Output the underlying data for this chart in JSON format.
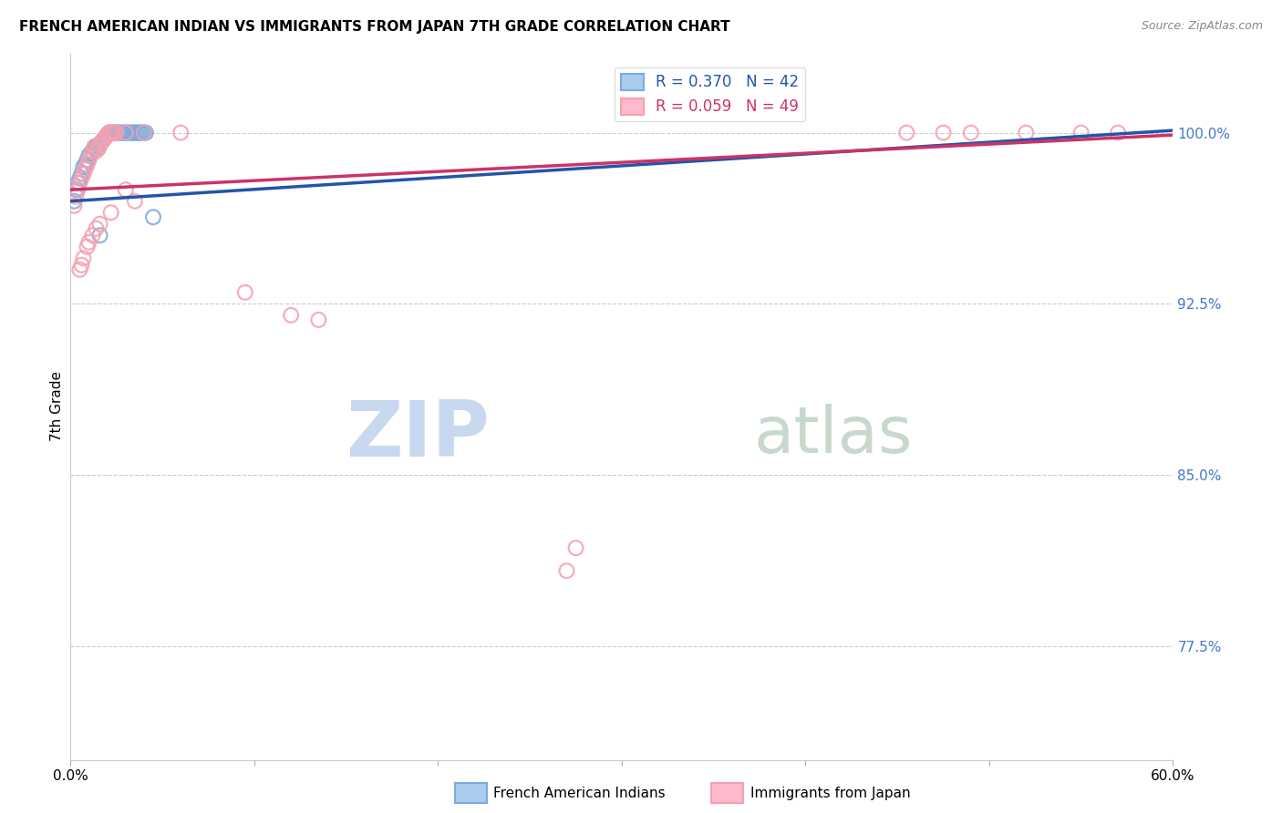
{
  "title": "FRENCH AMERICAN INDIAN VS IMMIGRANTS FROM JAPAN 7TH GRADE CORRELATION CHART",
  "source": "Source: ZipAtlas.com",
  "ylabel": "7th Grade",
  "ytick_labels": [
    "77.5%",
    "85.0%",
    "92.5%",
    "100.0%"
  ],
  "ytick_values": [
    0.775,
    0.85,
    0.925,
    1.0
  ],
  "xmin": 0.0,
  "xmax": 0.6,
  "ymin": 0.725,
  "ymax": 1.035,
  "legend_blue_label": "R = 0.370   N = 42",
  "legend_pink_label": "R = 0.059   N = 49",
  "bottom_legend_blue": "French American Indians",
  "bottom_legend_pink": "Immigrants from Japan",
  "color_blue": "#7AABDD",
  "color_pink": "#F4A0B0",
  "color_blue_line": "#2255AA",
  "color_pink_line": "#CC3366",
  "color_right_axis": "#4477CC",
  "watermark_zip_color": "#C8D8EE",
  "watermark_atlas_color": "#C8D8CC",
  "blue_x": [
    0.002,
    0.003,
    0.004,
    0.005,
    0.006,
    0.007,
    0.008,
    0.009,
    0.01,
    0.011,
    0.012,
    0.013,
    0.014,
    0.015,
    0.016,
    0.017,
    0.018,
    0.019,
    0.02,
    0.021,
    0.022,
    0.023,
    0.024,
    0.025,
    0.026,
    0.027,
    0.028,
    0.029,
    0.03,
    0.031,
    0.032,
    0.033,
    0.034,
    0.035,
    0.036,
    0.037,
    0.038,
    0.039,
    0.04,
    0.041,
    0.016,
    0.045
  ],
  "blue_y": [
    0.97,
    0.975,
    0.978,
    0.98,
    0.982,
    0.985,
    0.986,
    0.988,
    0.99,
    0.991,
    0.992,
    0.993,
    0.994,
    0.993,
    0.995,
    0.996,
    0.997,
    0.998,
    0.999,
    1.0,
    1.0,
    1.0,
    1.0,
    1.0,
    1.0,
    1.0,
    1.0,
    1.0,
    1.0,
    1.0,
    1.0,
    1.0,
    1.0,
    1.0,
    1.0,
    1.0,
    1.0,
    1.0,
    1.0,
    1.0,
    0.955,
    0.963
  ],
  "pink_x": [
    0.002,
    0.003,
    0.004,
    0.005,
    0.006,
    0.007,
    0.008,
    0.009,
    0.01,
    0.011,
    0.012,
    0.013,
    0.014,
    0.015,
    0.016,
    0.017,
    0.018,
    0.019,
    0.02,
    0.021,
    0.022,
    0.023,
    0.024,
    0.025,
    0.03,
    0.04,
    0.06,
    0.455,
    0.475,
    0.49,
    0.52,
    0.55,
    0.57,
    0.095,
    0.12,
    0.135,
    0.27,
    0.275,
    0.03,
    0.035,
    0.022,
    0.016,
    0.014,
    0.012,
    0.01,
    0.009,
    0.007,
    0.006,
    0.005
  ],
  "pink_y": [
    0.968,
    0.972,
    0.975,
    0.978,
    0.98,
    0.982,
    0.984,
    0.986,
    0.988,
    0.99,
    0.992,
    0.994,
    0.992,
    0.993,
    0.995,
    0.996,
    0.997,
    0.998,
    0.999,
    1.0,
    1.0,
    1.0,
    1.0,
    1.0,
    1.0,
    1.0,
    1.0,
    1.0,
    1.0,
    1.0,
    1.0,
    1.0,
    1.0,
    0.93,
    0.92,
    0.918,
    0.808,
    0.818,
    0.975,
    0.97,
    0.965,
    0.96,
    0.958,
    0.955,
    0.952,
    0.95,
    0.945,
    0.942,
    0.94
  ]
}
